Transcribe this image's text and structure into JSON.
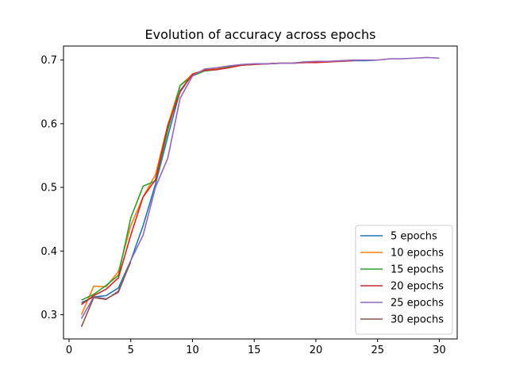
{
  "chart_data": {
    "type": "line",
    "title": "Evolution of accuracy across epochs",
    "xlabel": "",
    "ylabel": "",
    "xlim": [
      -0.45,
      31.45
    ],
    "ylim": [
      0.262,
      0.722
    ],
    "x_ticks": [
      0,
      5,
      10,
      15,
      20,
      25,
      30
    ],
    "y_ticks": [
      0.3,
      0.4,
      0.5,
      0.6,
      0.7
    ],
    "grid": false,
    "legend_position": "lower-right",
    "series": [
      {
        "name": "5 epochs",
        "color": "#1f77b4",
        "x": [
          1,
          2,
          3,
          4,
          5,
          6,
          7,
          8,
          9,
          10,
          11,
          12,
          13,
          14,
          15,
          16,
          17,
          18,
          19,
          20,
          21,
          22,
          23,
          24,
          25
        ],
        "values": [
          0.319,
          0.328,
          0.33,
          0.342,
          0.385,
          0.44,
          0.505,
          0.58,
          0.652,
          0.677,
          0.684,
          0.687,
          0.69,
          0.693,
          0.694,
          0.694,
          0.695,
          0.695,
          0.696,
          0.697,
          0.698,
          0.698,
          0.699,
          0.699,
          0.7
        ]
      },
      {
        "name": "10 epochs",
        "color": "#ff7f0e",
        "x": [
          1,
          2,
          3,
          4,
          5,
          6,
          7,
          8,
          9,
          10,
          11,
          12,
          13,
          14,
          15,
          16,
          17,
          18,
          19,
          20
        ],
        "values": [
          0.3,
          0.345,
          0.344,
          0.368,
          0.44,
          0.485,
          0.52,
          0.598,
          0.66,
          0.678,
          0.684,
          0.686,
          0.689,
          0.692,
          0.693,
          0.694,
          0.695,
          0.695,
          0.696,
          0.697
        ]
      },
      {
        "name": "15 epochs",
        "color": "#2ca02c",
        "x": [
          1,
          2,
          3,
          4,
          5,
          6,
          7,
          8,
          9,
          10,
          11,
          12,
          13,
          14,
          15
        ],
        "values": [
          0.323,
          0.332,
          0.346,
          0.362,
          0.452,
          0.502,
          0.51,
          0.59,
          0.66,
          0.675,
          0.683,
          0.685,
          0.689,
          0.692,
          0.693
        ]
      },
      {
        "name": "20 epochs",
        "color": "#d62728",
        "x": [
          1,
          2,
          3,
          4,
          5,
          6,
          7,
          8,
          9,
          10,
          11,
          12,
          13,
          14,
          15,
          16,
          17,
          18,
          19,
          20,
          21,
          22,
          23
        ],
        "values": [
          0.316,
          0.33,
          0.34,
          0.358,
          0.425,
          0.485,
          0.512,
          0.597,
          0.65,
          0.678,
          0.684,
          0.685,
          0.688,
          0.692,
          0.693,
          0.694,
          0.695,
          0.695,
          0.696,
          0.696,
          0.697,
          0.698,
          0.699
        ]
      },
      {
        "name": "25 epochs",
        "color": "#9467bd",
        "x": [
          1,
          2,
          3,
          4,
          5,
          6,
          7,
          8,
          9,
          10,
          11,
          12,
          13,
          14,
          15,
          16,
          17,
          18,
          19,
          20,
          21,
          22,
          23,
          24,
          25,
          26,
          27,
          28,
          29,
          30
        ],
        "values": [
          0.294,
          0.328,
          0.325,
          0.335,
          0.385,
          0.425,
          0.5,
          0.546,
          0.64,
          0.675,
          0.686,
          0.688,
          0.691,
          0.693,
          0.694,
          0.694,
          0.695,
          0.695,
          0.697,
          0.698,
          0.698,
          0.699,
          0.7,
          0.7,
          0.7,
          0.702,
          0.702,
          0.703,
          0.704,
          0.703
        ]
      },
      {
        "name": "30 epochs",
        "color": "#8c564b",
        "x": [
          1,
          2,
          3,
          4,
          5
        ],
        "values": [
          0.281,
          0.327,
          0.324,
          0.337,
          0.383
        ]
      }
    ]
  }
}
